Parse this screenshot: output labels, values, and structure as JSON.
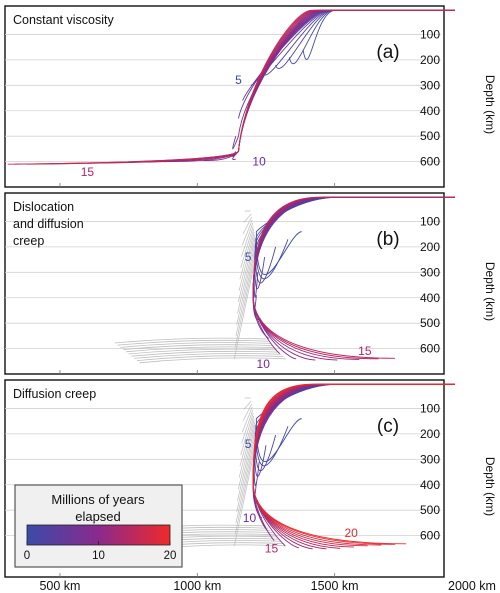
{
  "colors": {
    "early": "#3b4ba8",
    "mid": "#8a2a8c",
    "late": "#ee2a2a",
    "ghost": "#bdbdbd",
    "panel_bg": "#f0f0f0"
  },
  "chart_data": [
    {
      "type": "line",
      "label": "(a)",
      "title": "Constant viscosity",
      "ylabel": "Depth (km)",
      "yticks": [
        100,
        200,
        300,
        400,
        500,
        600
      ],
      "xlim": [
        300,
        2000
      ],
      "ylim": [
        0,
        680
      ],
      "grid": true,
      "trench_x": 1500,
      "time_labels": [
        {
          "text": "5",
          "x": 1150,
          "y": 280,
          "color": "#3b4ba8"
        },
        {
          "text": "10",
          "x": 1225,
          "y": 600,
          "color": "#6b2a9a"
        },
        {
          "text": "15",
          "x": 600,
          "y": 640,
          "color": "#b0246c"
        }
      ],
      "curves": [
        {
          "t": 1,
          "tip": [
            1385,
            160
          ]
        },
        {
          "t": 2,
          "tip": [
            1335,
            190
          ]
        },
        {
          "t": 3,
          "tip": [
            1285,
            220
          ]
        },
        {
          "t": 4,
          "tip": [
            1240,
            255
          ]
        },
        {
          "t": 5,
          "tip": [
            1195,
            300
          ]
        },
        {
          "t": 6,
          "tip": [
            1165,
            360
          ]
        },
        {
          "t": 7,
          "tip": [
            1150,
            430
          ]
        },
        {
          "t": 8,
          "tip": [
            1140,
            500
          ]
        },
        {
          "t": 9,
          "tip": [
            1140,
            560
          ]
        },
        {
          "t": 10,
          "tip": [
            1140,
            590
          ]
        },
        {
          "t": 11,
          "tip": [
            1020,
            595
          ]
        },
        {
          "t": 12,
          "tip": [
            880,
            600
          ]
        },
        {
          "t": 13,
          "tip": [
            740,
            603
          ]
        },
        {
          "t": 14,
          "tip": [
            600,
            606
          ]
        },
        {
          "t": 15,
          "tip": [
            460,
            609
          ]
        },
        {
          "t": 16,
          "tip": [
            380,
            610
          ]
        },
        {
          "t": 17,
          "tip": [
            335,
            610
          ]
        },
        {
          "t": 18,
          "tip": [
            310,
            610
          ]
        }
      ]
    },
    {
      "type": "line",
      "label": "(b)",
      "title": "Dislocation and diffusion creep",
      "title_lines": [
        "Dislocation",
        "and diffusion",
        "creep"
      ],
      "ylabel": "Depth (km)",
      "yticks": [
        100,
        200,
        300,
        400,
        500,
        600
      ],
      "xlim": [
        300,
        2000
      ],
      "ylim": [
        0,
        680
      ],
      "grid": true,
      "trench_x": 1500,
      "time_labels": [
        {
          "text": "5",
          "x": 1185,
          "y": 240,
          "color": "#3b4ba8"
        },
        {
          "text": "10",
          "x": 1240,
          "y": 660,
          "color": "#6b2a9a"
        },
        {
          "text": "15",
          "x": 1610,
          "y": 610,
          "color": "#b0246c"
        }
      ],
      "curves": [
        {
          "t": 1,
          "tip": [
            1380,
            140
          ]
        },
        {
          "t": 2,
          "tip": [
            1330,
            170
          ]
        },
        {
          "t": 3,
          "tip": [
            1285,
            200
          ]
        },
        {
          "t": 4,
          "tip": [
            1245,
            240
          ]
        },
        {
          "t": 5,
          "tip": [
            1220,
            300
          ]
        },
        {
          "t": 6,
          "tip": [
            1215,
            390
          ]
        },
        {
          "t": 7,
          "tip": [
            1230,
            480
          ]
        },
        {
          "t": 8,
          "tip": [
            1260,
            560
          ]
        },
        {
          "t": 9,
          "tip": [
            1300,
            620
          ]
        },
        {
          "t": 10,
          "tip": [
            1360,
            640
          ]
        },
        {
          "t": 11,
          "tip": [
            1430,
            645
          ]
        },
        {
          "t": 12,
          "tip": [
            1510,
            645
          ]
        },
        {
          "t": 13,
          "tip": [
            1590,
            643
          ]
        },
        {
          "t": 14,
          "tip": [
            1660,
            640
          ]
        },
        {
          "t": 15,
          "tip": [
            1720,
            638
          ]
        }
      ]
    },
    {
      "type": "line",
      "label": "(c)",
      "title": "Diffusion creep",
      "ylabel": "Depth (km)",
      "yticks": [
        100,
        200,
        300,
        400,
        500,
        600
      ],
      "xticks": [
        500,
        1000,
        1500,
        2000
      ],
      "xtick_labels": [
        "500 km",
        "1000 km",
        "1500 km",
        "2000 km"
      ],
      "xlim": [
        300,
        2000
      ],
      "ylim": [
        0,
        680
      ],
      "grid": true,
      "trench_x": 1500,
      "time_labels": [
        {
          "text": "5",
          "x": 1185,
          "y": 240,
          "color": "#3b4ba8"
        },
        {
          "text": "10",
          "x": 1190,
          "y": 530,
          "color": "#6b2a9a"
        },
        {
          "text": "15",
          "x": 1270,
          "y": 650,
          "color": "#b0246c"
        },
        {
          "text": "20",
          "x": 1560,
          "y": 590,
          "color": "#e32a2a"
        }
      ],
      "curves": [
        {
          "t": 1,
          "tip": [
            1380,
            140
          ]
        },
        {
          "t": 2,
          "tip": [
            1330,
            170
          ]
        },
        {
          "t": 3,
          "tip": [
            1285,
            205
          ]
        },
        {
          "t": 4,
          "tip": [
            1250,
            245
          ]
        },
        {
          "t": 5,
          "tip": [
            1225,
            310
          ]
        },
        {
          "t": 6,
          "tip": [
            1215,
            390
          ]
        },
        {
          "t": 7,
          "tip": [
            1220,
            460
          ]
        },
        {
          "t": 8,
          "tip": [
            1235,
            530
          ]
        },
        {
          "t": 9,
          "tip": [
            1255,
            580
          ]
        },
        {
          "t": 10,
          "tip": [
            1280,
            620
          ]
        },
        {
          "t": 11,
          "tip": [
            1320,
            640
          ]
        },
        {
          "t": 12,
          "tip": [
            1370,
            648
          ]
        },
        {
          "t": 13,
          "tip": [
            1420,
            652
          ]
        },
        {
          "t": 14,
          "tip": [
            1470,
            652
          ]
        },
        {
          "t": 15,
          "tip": [
            1520,
            650
          ]
        },
        {
          "t": 16,
          "tip": [
            1570,
            645
          ]
        },
        {
          "t": 17,
          "tip": [
            1620,
            640
          ]
        },
        {
          "t": 18,
          "tip": [
            1670,
            637
          ]
        },
        {
          "t": 19,
          "tip": [
            1720,
            634
          ]
        },
        {
          "t": 20,
          "tip": [
            1760,
            632
          ]
        }
      ]
    }
  ],
  "legend": {
    "title_lines": [
      "Millions of years",
      "elapsed"
    ],
    "ticks": [
      0,
      10,
      20
    ],
    "range": [
      0,
      20
    ]
  }
}
